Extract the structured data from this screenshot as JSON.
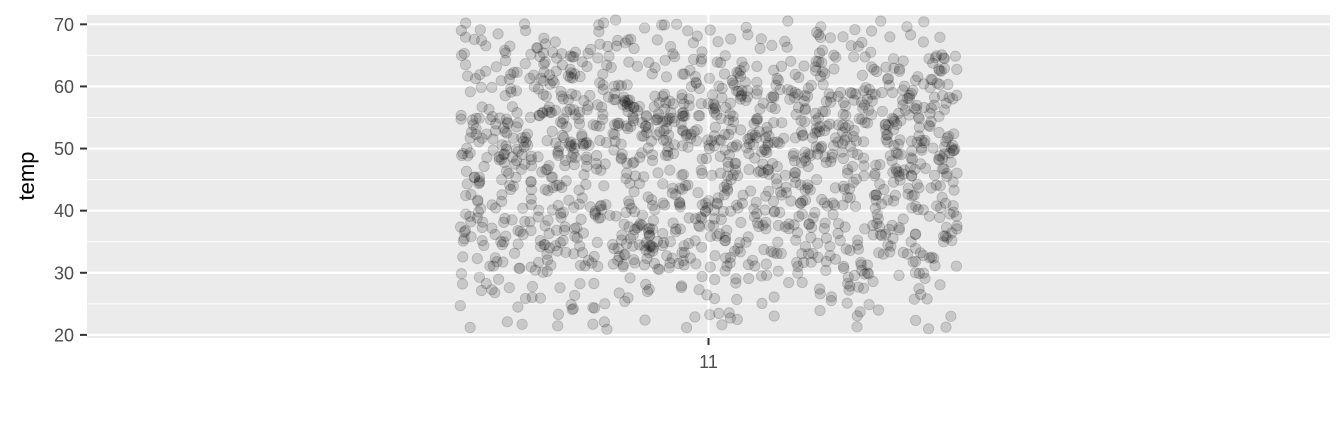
{
  "chart_data": {
    "type": "scatter",
    "title": "",
    "xlabel": "",
    "ylabel": "temp",
    "x_categories": [
      "11"
    ],
    "ylim": [
      19.5,
      71.5
    ],
    "y_ticks": [
      20,
      30,
      40,
      50,
      60,
      70
    ],
    "y_tick_labels": [
      "20",
      "30",
      "40",
      "50",
      "60",
      "70"
    ],
    "grid": true,
    "legend": "none",
    "point_color": "#000000",
    "point_opacity": 0.15,
    "panel_color": "#ebebeb",
    "jitter_width": 0.4,
    "series": [
      {
        "x_category": "11",
        "y_values": [
          70.4,
          70.7,
          69.9,
          70.0,
          69.4,
          70.2,
          68.7,
          68.3,
          67.9,
          67.2,
          66.8,
          66.5,
          66.1,
          65.8,
          65.4,
          65.0,
          64.6,
          64.2,
          63.9,
          63.5,
          63.1,
          62.8,
          62.4,
          62.0,
          61.6,
          61.3,
          60.9,
          60.5,
          60.2,
          59.8,
          59.5,
          59.1,
          58.8,
          58.4,
          58.0,
          57.7,
          57.3,
          57.0,
          56.6,
          56.3,
          55.9,
          55.5,
          55.2,
          54.8,
          54.5,
          54.1,
          53.8,
          53.4,
          53.1,
          52.7,
          52.4,
          52.0,
          51.7,
          51.3,
          51.0,
          50.6,
          50.3,
          49.9,
          49.6,
          49.2,
          48.9,
          48.5,
          48.2,
          47.8,
          47.5,
          47.1,
          46.8,
          46.4,
          46.1,
          45.7,
          45.4,
          45.0,
          44.7,
          44.3,
          44.0,
          43.6,
          43.3,
          42.9,
          42.6,
          42.2,
          41.9,
          41.5,
          41.2,
          40.8,
          40.5,
          40.1,
          39.8,
          39.4,
          39.1,
          38.7,
          38.4,
          38.0,
          37.7,
          37.3,
          37.0,
          36.6,
          36.3,
          35.9,
          35.6,
          35.2,
          34.9,
          34.5,
          34.2,
          33.8,
          33.5,
          33.1,
          32.8,
          32.4,
          32.1,
          31.7,
          31.4,
          31.0,
          30.7,
          30.3,
          30.0,
          29.6,
          29.3,
          28.9,
          28.6,
          28.2,
          27.9,
          27.5,
          27.2,
          26.8,
          26.5,
          26.1,
          25.8,
          25.4,
          25.1,
          24.7,
          24.4,
          24.0,
          23.7,
          23.3,
          22.9,
          22.5,
          22.1,
          21.7,
          21.3,
          20.9
        ]
      }
    ]
  }
}
